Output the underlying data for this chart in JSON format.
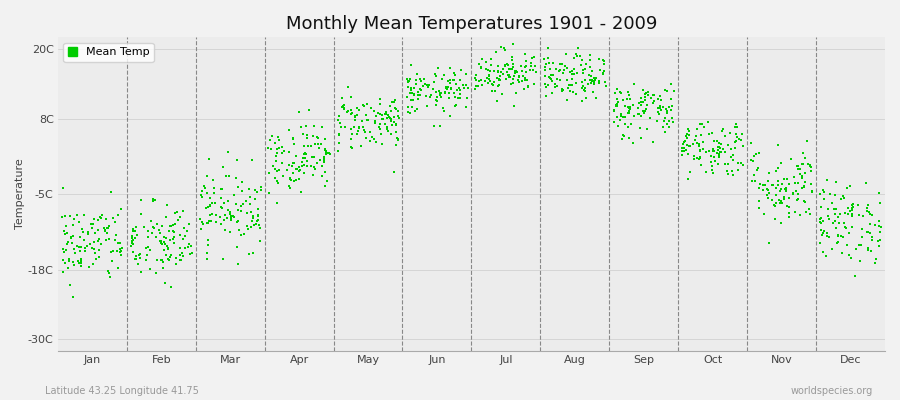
{
  "title": "Monthly Mean Temperatures 1901 - 2009",
  "ylabel": "Temperature",
  "yticks": [
    -30,
    -18,
    -5,
    8,
    20
  ],
  "ytick_labels": [
    "-30C",
    "-18C",
    "-5C",
    "8C",
    "20C"
  ],
  "ylim": [
    -32,
    22
  ],
  "xlim": [
    0.0,
    12.0
  ],
  "month_dividers": [
    1.0,
    2.0,
    3.0,
    4.0,
    5.0,
    6.0,
    7.0,
    8.0,
    9.0,
    10.0,
    11.0
  ],
  "xtick_positions": [
    0.5,
    1.5,
    2.5,
    3.5,
    4.5,
    5.5,
    6.5,
    7.5,
    8.5,
    9.5,
    10.5,
    11.5
  ],
  "xtick_labels": [
    "Jan",
    "Feb",
    "Mar",
    "Apr",
    "May",
    "Jun",
    "Jul",
    "Aug",
    "Sep",
    "Oct",
    "Nov",
    "Dec"
  ],
  "dot_color": "#00cc00",
  "background_color": "#f2f2f2",
  "plot_bg_color": "#ececec",
  "legend_label": "Mean Temp",
  "subtitle": "Latitude 43.25 Longitude 41.75",
  "watermark": "worldspecies.org",
  "n_years": 109,
  "monthly_mean_temps": [
    -13.5,
    -13.5,
    -7.5,
    1.5,
    7.5,
    12.5,
    16.0,
    15.0,
    9.5,
    3.0,
    -3.5,
    -10.0
  ],
  "monthly_std_temps": [
    3.5,
    3.5,
    3.5,
    3.0,
    2.5,
    2.0,
    2.0,
    2.0,
    2.5,
    2.5,
    3.5,
    3.5
  ]
}
